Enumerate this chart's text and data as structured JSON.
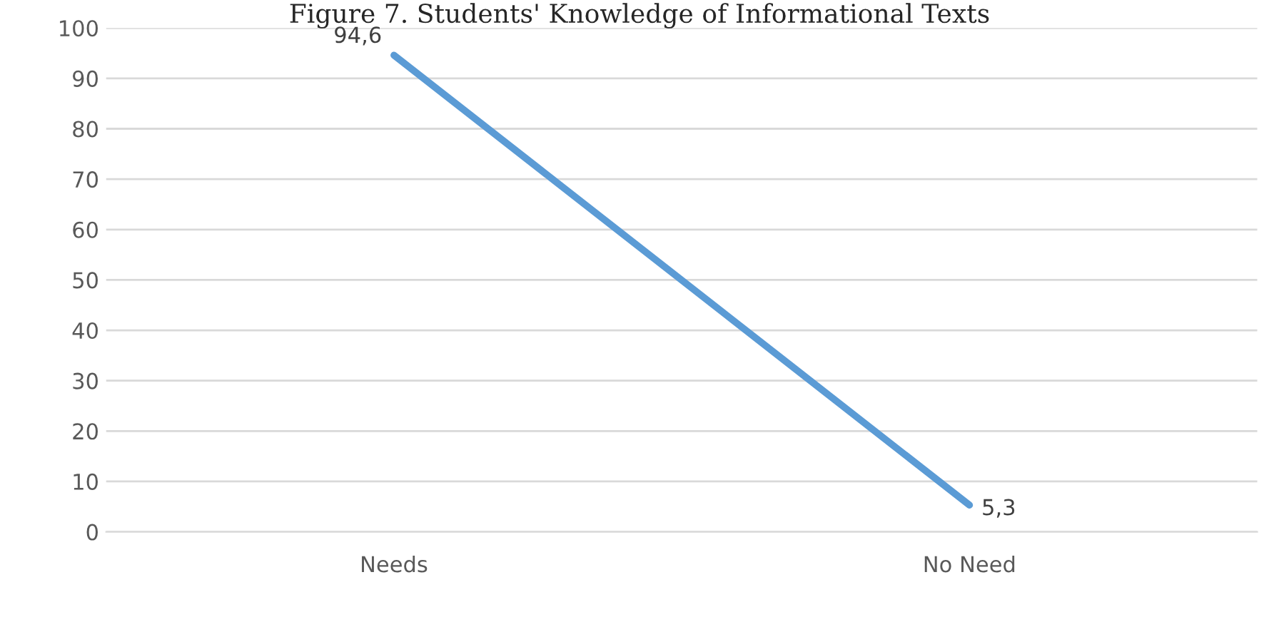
{
  "chart_data": {
    "type": "line",
    "title": "Figure 7. Students' Knowledge of Informational Texts",
    "categories": [
      "Needs",
      "No Need"
    ],
    "series": [
      {
        "color": "#5b9bd5",
        "values": [
          94.6,
          5.3
        ],
        "value_labels": [
          "94,6",
          "5,3"
        ]
      }
    ],
    "ylim": [
      0,
      100
    ],
    "yticks": [
      0,
      10,
      20,
      30,
      40,
      50,
      60,
      70,
      80,
      90,
      100
    ],
    "grid": "y",
    "marker": "none",
    "line_style": "solid"
  }
}
